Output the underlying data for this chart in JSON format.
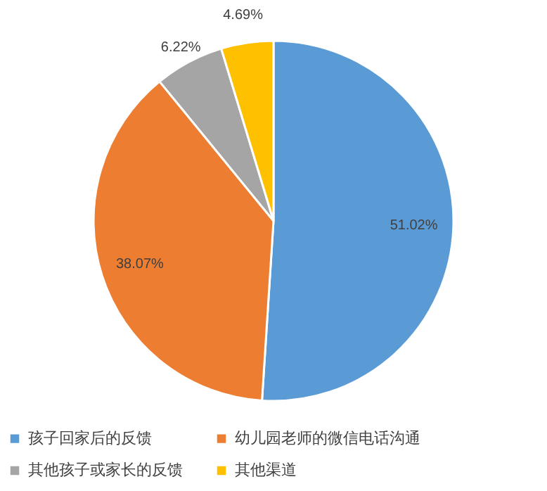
{
  "chart_data": {
    "type": "pie",
    "categories": [
      "孩子回家后的反馈",
      "幼儿园老师的微信电话沟通",
      "其他孩子或家长的反馈",
      "其他渠道"
    ],
    "values": [
      51.02,
      38.07,
      6.22,
      4.69
    ],
    "value_labels": [
      "51.02%",
      "38.07%",
      "6.22%",
      "4.69%"
    ],
    "colors": [
      "#5b9bd5",
      "#ed7d31",
      "#a5a5a5",
      "#ffc000"
    ],
    "legend": "bottom"
  }
}
